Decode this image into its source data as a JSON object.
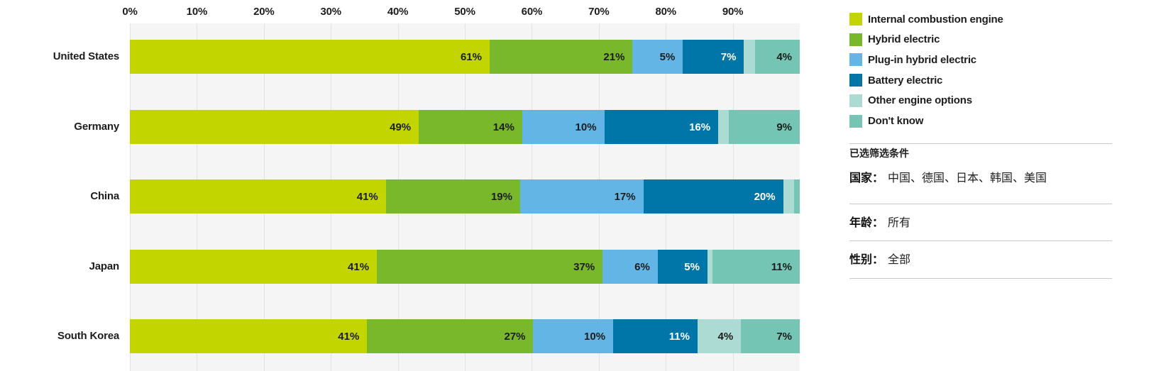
{
  "colors": {
    "ice": "#c3d500",
    "hybrid": "#78b82a",
    "phev": "#62b5e5",
    "bev": "#0076a8",
    "other": "#abdbd2",
    "dontknow": "#74c5b4",
    "plot_bg": "#f5f5f6",
    "gridline": "#e2e2e2",
    "divider": "#c9c9c9",
    "label_dark": "#1d1d1d",
    "label_light": "#ffffff"
  },
  "chart_data": {
    "type": "bar",
    "orientation": "horizontal-stacked",
    "unit": "%",
    "title": "",
    "xlabel": "",
    "ylabel": "",
    "axis": {
      "min": 0,
      "max": 100,
      "tick_step": 10,
      "ticks": [
        "0%",
        "10%",
        "20%",
        "30%",
        "40%",
        "50%",
        "60%",
        "70%",
        "80%",
        "90%"
      ],
      "grid": true
    },
    "legend_position": "right",
    "categories": [
      "United States",
      "Germany",
      "China",
      "Japan",
      "South Korea"
    ],
    "series": [
      {
        "name": "Internal combustion engine",
        "color_key": "ice",
        "values": [
          61,
          49,
          41,
          41,
          41
        ],
        "labels": [
          "61%",
          "49%",
          "41%",
          "41%",
          "41%"
        ],
        "label_color": "dark"
      },
      {
        "name": "Hybrid electric",
        "color_key": "hybrid",
        "values": [
          21,
          14,
          19,
          37,
          27
        ],
        "labels": [
          "21%",
          "14%",
          "19%",
          "37%",
          "27%"
        ],
        "label_color": "dark"
      },
      {
        "name": "Plug-in hybrid electric",
        "color_key": "phev",
        "values": [
          5,
          10,
          17,
          6,
          10
        ],
        "labels": [
          "5%",
          "10%",
          "17%",
          "6%",
          "10%"
        ],
        "label_color": "dark"
      },
      {
        "name": "Battery electric",
        "color_key": "bev",
        "values": [
          7,
          16,
          20,
          5,
          11
        ],
        "labels": [
          "7%",
          "16%",
          "20%",
          "5%",
          "11%"
        ],
        "label_color": "light"
      },
      {
        "name": "Other engine options",
        "color_key": "other",
        "values": [
          2,
          2,
          2,
          1,
          4
        ],
        "labels": [
          "",
          "",
          "",
          "",
          "4%"
        ],
        "label_color": "dark"
      },
      {
        "name": "Don't know",
        "color_key": "dontknow",
        "values": [
          4,
          9,
          1,
          11,
          7
        ],
        "labels": [
          "4%",
          "9%",
          "",
          "11%",
          "7%"
        ],
        "label_color": "dark"
      }
    ]
  },
  "filters": {
    "title": "已选筛选条件",
    "rows": [
      {
        "label": "国家：",
        "value": "中国、德国、日本、韩国、美国"
      },
      {
        "label": "年龄：",
        "value": "所有"
      },
      {
        "label": "性别：",
        "value": "全部"
      }
    ]
  }
}
